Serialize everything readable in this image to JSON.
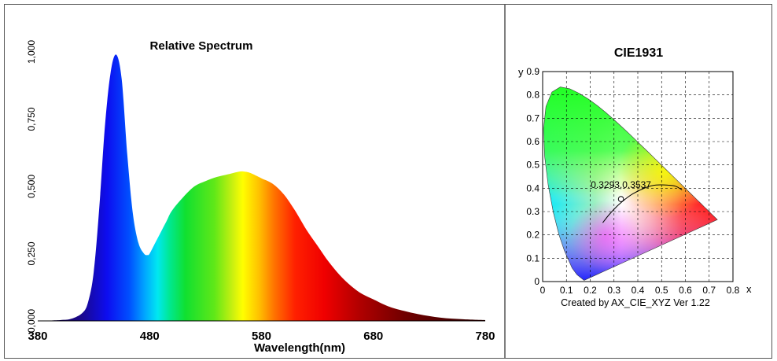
{
  "chart_data": [
    {
      "type": "area",
      "title": "Relative Spectrum",
      "xlabel": "Wavelength(nm)",
      "ylabel": "",
      "xlim": [
        380,
        780
      ],
      "ylim": [
        0,
        1.0
      ],
      "x_ticks": [
        "380",
        "480",
        "580",
        "680",
        "780"
      ],
      "y_ticks": [
        "0,000",
        "0,250",
        "0,500",
        "0,750",
        "1,000"
      ],
      "grid": false,
      "series": [
        {
          "x": [
            380,
            400,
            410,
            420,
            425,
            430,
            435,
            440,
            445,
            450,
            455,
            460,
            465,
            470,
            475,
            478,
            480,
            485,
            490,
            495,
            500,
            510,
            520,
            530,
            540,
            550,
            560,
            565,
            570,
            580,
            590,
            600,
            610,
            620,
            630,
            640,
            650,
            660,
            670,
            680,
            690,
            700,
            720,
            740,
            760,
            780
          ],
          "values": [
            0,
            0.003,
            0.008,
            0.03,
            0.07,
            0.18,
            0.42,
            0.72,
            0.92,
            0.99,
            0.9,
            0.62,
            0.4,
            0.29,
            0.25,
            0.245,
            0.25,
            0.29,
            0.33,
            0.37,
            0.41,
            0.46,
            0.5,
            0.52,
            0.535,
            0.545,
            0.555,
            0.555,
            0.55,
            0.53,
            0.51,
            0.47,
            0.41,
            0.34,
            0.28,
            0.22,
            0.17,
            0.13,
            0.1,
            0.08,
            0.06,
            0.045,
            0.025,
            0.012,
            0.006,
            0.003
          ]
        }
      ]
    },
    {
      "type": "scatter",
      "title": "CIE1931",
      "xlabel": "x",
      "ylabel": "y",
      "xlim": [
        0,
        0.8
      ],
      "ylim": [
        0,
        0.9
      ],
      "x_ticks": [
        "0",
        "0.1",
        "0.2",
        "0.3",
        "0.4",
        "0.5",
        "0.6",
        "0.7",
        "0.8"
      ],
      "y_ticks": [
        "0",
        "0.1",
        "0.2",
        "0.3",
        "0.4",
        "0.5",
        "0.6",
        "0.7",
        "0.8",
        "0.9"
      ],
      "grid": true,
      "footer": "Created by AX_CIE_XYZ Ver 1.22",
      "point": {
        "x": 0.3293,
        "y": 0.3537,
        "label": "0.3293,0.3537"
      },
      "locus": {
        "x": [
          0.1741,
          0.144,
          0.1241,
          0.0913,
          0.0687,
          0.0454,
          0.0235,
          0.0082,
          0.0039,
          0.0139,
          0.0389,
          0.0743,
          0.1142,
          0.1547,
          0.1929,
          0.2296,
          0.2658,
          0.3016,
          0.3373,
          0.3731,
          0.4087,
          0.4441,
          0.4788,
          0.5125,
          0.5448,
          0.5752,
          0.6029,
          0.627,
          0.6482,
          0.6658,
          0.6801,
          0.6915,
          0.7006,
          0.7079,
          0.7347
        ],
        "y": [
          0.005,
          0.0297,
          0.0578,
          0.1327,
          0.2007,
          0.295,
          0.4127,
          0.5384,
          0.6548,
          0.7502,
          0.812,
          0.8338,
          0.8262,
          0.8059,
          0.7816,
          0.7543,
          0.7243,
          0.6923,
          0.6589,
          0.6245,
          0.5896,
          0.5547,
          0.5202,
          0.4866,
          0.4544,
          0.4242,
          0.3965,
          0.3725,
          0.3514,
          0.334,
          0.3197,
          0.3083,
          0.2993,
          0.292,
          0.2653
        ]
      },
      "planckian": {
        "x": [
          0.2525,
          0.2806,
          0.3135,
          0.3451,
          0.3805,
          0.4369,
          0.4764,
          0.5267,
          0.5586,
          0.5857
        ],
        "y": [
          0.2523,
          0.2883,
          0.3236,
          0.3516,
          0.3768,
          0.4041,
          0.4137,
          0.4133,
          0.4084,
          0.3931
        ]
      }
    }
  ]
}
